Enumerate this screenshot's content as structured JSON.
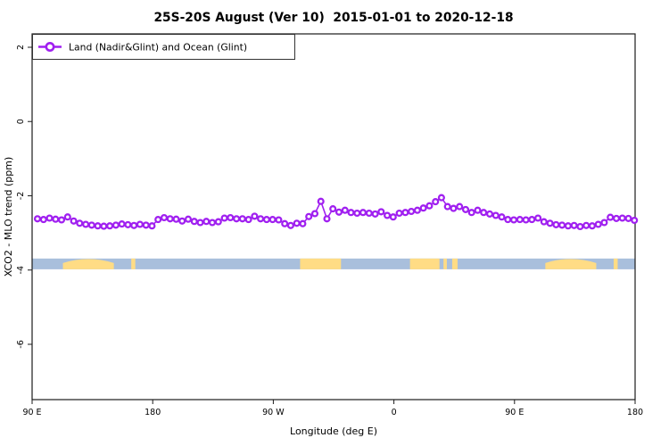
{
  "chart_data": {
    "type": "line",
    "title": "25S-20S August (Ver 10)  2015-01-01 to 2020-12-18",
    "xlabel": "Longitude (deg E)",
    "ylabel": "XCO2 - MLO trend (ppm)",
    "xlim": [
      90,
      540
    ],
    "ylim": [
      -7.49,
      2.36
    ],
    "grid": false,
    "legend_position": "top-left",
    "x_ticks": [
      {
        "lon": 90,
        "label": "90 E"
      },
      {
        "lon": 180,
        "label": "180"
      },
      {
        "lon": 270,
        "label": "90 W"
      },
      {
        "lon": 360,
        "label": "0"
      },
      {
        "lon": 450,
        "label": "90 E"
      },
      {
        "lon": 540,
        "label": "180"
      }
    ],
    "y_ticks": [
      {
        "value": 2,
        "label": "2"
      },
      {
        "value": 0,
        "label": "0"
      },
      {
        "value": -2,
        "label": "-2"
      },
      {
        "value": -4,
        "label": "-4"
      },
      {
        "value": -6,
        "label": "-6"
      }
    ],
    "colors": {
      "series": "#A020F0",
      "marker_fill": "#ffffff",
      "ocean": "#A9BFDC",
      "land": "#FFDC85",
      "axis": "#1a1a1a"
    },
    "series": [
      {
        "name": "Land (Nadir&Glint) and Ocean (Glint)",
        "marker": "open-circle",
        "x_start": 94,
        "x_step": 4.5,
        "values": [
          -2.62,
          -2.64,
          -2.6,
          -2.63,
          -2.65,
          -2.57,
          -2.68,
          -2.74,
          -2.77,
          -2.79,
          -2.81,
          -2.82,
          -2.81,
          -2.79,
          -2.76,
          -2.78,
          -2.8,
          -2.77,
          -2.79,
          -2.81,
          -2.64,
          -2.59,
          -2.62,
          -2.63,
          -2.68,
          -2.63,
          -2.69,
          -2.72,
          -2.69,
          -2.72,
          -2.7,
          -2.6,
          -2.59,
          -2.62,
          -2.62,
          -2.64,
          -2.55,
          -2.62,
          -2.64,
          -2.64,
          -2.65,
          -2.75,
          -2.8,
          -2.74,
          -2.75,
          -2.56,
          -2.48,
          -2.15,
          -2.62,
          -2.35,
          -2.44,
          -2.39,
          -2.45,
          -2.47,
          -2.45,
          -2.47,
          -2.49,
          -2.43,
          -2.53,
          -2.57,
          -2.47,
          -2.45,
          -2.42,
          -2.39,
          -2.33,
          -2.27,
          -2.16,
          -2.05,
          -2.29,
          -2.34,
          -2.29,
          -2.37,
          -2.45,
          -2.39,
          -2.45,
          -2.49,
          -2.53,
          -2.57,
          -2.64,
          -2.65,
          -2.64,
          -2.65,
          -2.64,
          -2.6,
          -2.7,
          -2.74,
          -2.78,
          -2.79,
          -2.81,
          -2.8,
          -2.83,
          -2.8,
          -2.81,
          -2.77,
          -2.72,
          -2.58,
          -2.61,
          -2.6,
          -2.61,
          -2.66
        ]
      }
    ],
    "land_ocean_strip": {
      "description": "ocean-land band along 25S-20S",
      "y_value_range": [
        -3.98,
        -3.69
      ],
      "ocean_color": "#A9BFDC",
      "land_color": "#FFDC85",
      "land_segments_lon": [
        {
          "from": 113,
          "to": 151,
          "dome": true,
          "name": "australia"
        },
        {
          "from": 164,
          "to": 167,
          "dome": false,
          "name": "new-caledonia"
        },
        {
          "from": 290,
          "to": 320.5,
          "dome": false,
          "name": "south-america"
        },
        {
          "from": 372,
          "to": 394,
          "dome": false,
          "name": "africa"
        },
        {
          "from": 397,
          "to": 399.5,
          "dome": false,
          "name": "africa-east-speck"
        },
        {
          "from": 403.5,
          "to": 407.5,
          "dome": false,
          "name": "madagascar"
        },
        {
          "from": 473,
          "to": 511,
          "dome": true,
          "name": "australia-repeat"
        },
        {
          "from": 524,
          "to": 527,
          "dome": false,
          "name": "new-caledonia-repeat"
        }
      ]
    }
  },
  "legend": {
    "label": "Land (Nadir&Glint) and Ocean (Glint)"
  }
}
